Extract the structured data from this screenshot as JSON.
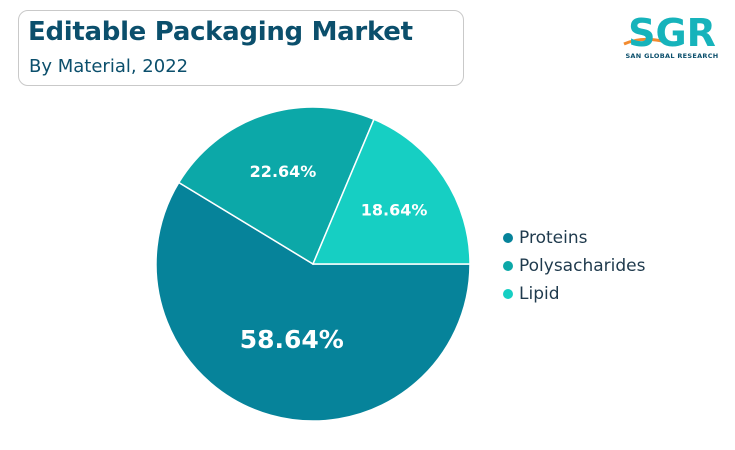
{
  "header": {
    "title": "Editable Packaging Market",
    "subtitle": "By Material, 2022"
  },
  "logo": {
    "text": "SGR",
    "tagline": "SAN GLOBAL RESEARCH"
  },
  "chart_data": {
    "type": "pie",
    "title": "Editable Packaging Market",
    "subtitle": "By Material, 2022",
    "categories": [
      "Proteins",
      "Polysacharides",
      "Lipid"
    ],
    "values": [
      58.64,
      22.64,
      18.64
    ],
    "data_labels": [
      "58.64%",
      "22.64%",
      "18.64%"
    ],
    "colors": [
      "#06839a",
      "#0ca8a8",
      "#16cfc3"
    ],
    "legend_position": "right"
  }
}
